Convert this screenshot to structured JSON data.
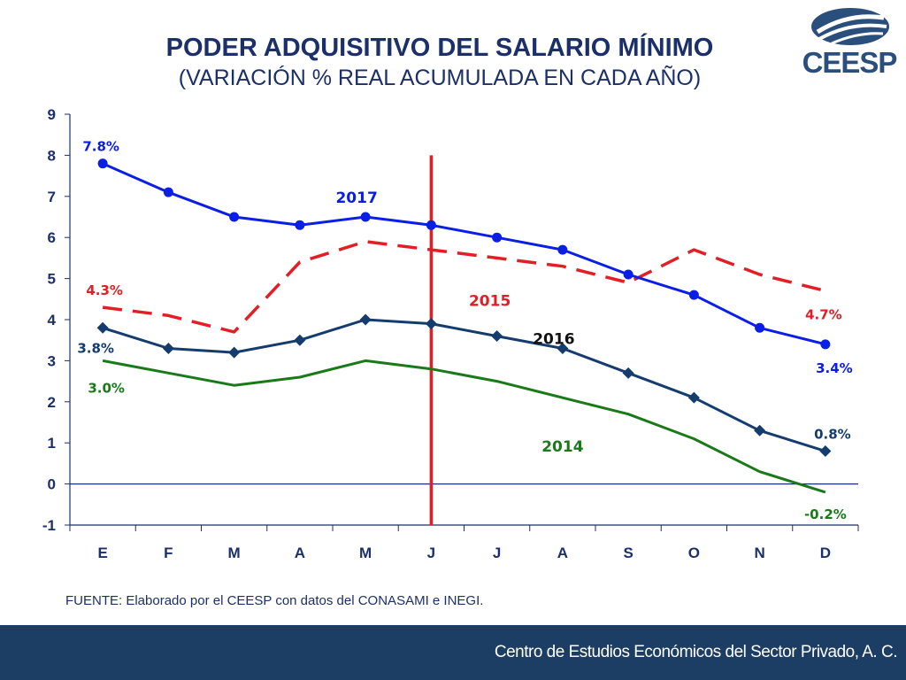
{
  "header": {
    "title": "PODER ADQUISITIVO DEL SALARIO MÍNIMO",
    "subtitle": "(VARIACIÓN % REAL ACUMULADA EN CADA AÑO)",
    "logo_text": "CEESP",
    "logo_icon": "ceesp-globe-logo-icon"
  },
  "source": "FUENTE: Elaborado por el CEESP con datos del CONASAMI e INEGI.",
  "footer": {
    "text": "Centro de Estudios Económicos del Sector Privado, A. C."
  },
  "colors": {
    "title": "#1b2f6b",
    "s2017": "#0a1ee6",
    "s2015": "#e31e24",
    "s2016": "#143c6e",
    "s2014": "#1a7a1a",
    "marker_line": "#e31e24",
    "footer_bg": "#1c3d64"
  },
  "chart_data": {
    "type": "line",
    "title": "PODER ADQUISITIVO DEL SALARIO MÍNIMO",
    "subtitle": "(VARIACIÓN % REAL ACUMULADA EN CADA AÑO)",
    "xlabel": "",
    "ylabel": "",
    "categories": [
      "E",
      "F",
      "M",
      "A",
      "M",
      "J",
      "J",
      "A",
      "S",
      "O",
      "N",
      "D"
    ],
    "ylim": [
      -1,
      9
    ],
    "yticks": [
      -1,
      0,
      1,
      2,
      3,
      4,
      5,
      6,
      7,
      8,
      9
    ],
    "grid": false,
    "vertical_marker_category_index": 5,
    "series": [
      {
        "name": "2017",
        "key": "s2017",
        "marker": "circle",
        "dash": false,
        "values": [
          7.8,
          7.1,
          6.5,
          6.3,
          6.5,
          6.3,
          6.0,
          5.7,
          5.1,
          4.6,
          3.8,
          3.4
        ],
        "first_label": "7.8%",
        "last_label": "3.4%"
      },
      {
        "name": "2015",
        "key": "s2015",
        "marker": "none",
        "dash": true,
        "values": [
          4.3,
          4.1,
          3.7,
          5.4,
          5.9,
          5.7,
          5.5,
          5.3,
          4.9,
          5.7,
          5.1,
          4.7
        ],
        "first_label": "4.3%",
        "last_label": "4.7%"
      },
      {
        "name": "2016",
        "key": "s2016",
        "marker": "diamond",
        "dash": false,
        "values": [
          3.8,
          3.3,
          3.2,
          3.5,
          4.0,
          3.9,
          3.6,
          3.3,
          2.7,
          2.1,
          1.3,
          0.8
        ],
        "first_label": "3.8%",
        "last_label": "0.8%"
      },
      {
        "name": "2014",
        "key": "s2014",
        "marker": "none",
        "dash": false,
        "values": [
          3.0,
          2.7,
          2.4,
          2.6,
          3.0,
          2.8,
          2.5,
          2.1,
          1.7,
          1.1,
          0.3,
          -0.2
        ],
        "first_label": "3.0%",
        "last_label": "-0.2%"
      }
    ]
  }
}
